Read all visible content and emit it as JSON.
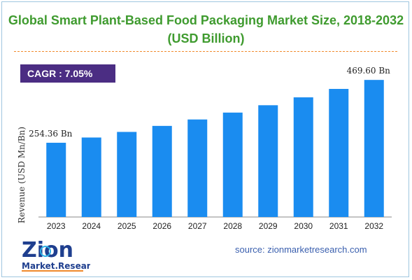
{
  "title": "Global Smart Plant-Based Food Packaging Market Size, 2018-2032 (USD Billion)",
  "cagr": {
    "label": "CAGR :",
    "value": "7.05%"
  },
  "source": "source: zionmarketresearch.com",
  "logo": {
    "line1": "Zion",
    "line2": "Market.Research"
  },
  "colors": {
    "bar": "#1a8cf0",
    "title": "#3f9b2f",
    "cagr_bg": "#4b2d83",
    "divider": "#f08a2c",
    "source": "#3a5fae"
  },
  "chart_data": {
    "type": "bar",
    "title": "Global Smart Plant-Based Food Packaging Market Size, 2018-2032 (USD Billion)",
    "xlabel": "",
    "ylabel": "Revenue (USD Mn/Bn)",
    "categories": [
      "2023",
      "2024",
      "2025",
      "2026",
      "2027",
      "2028",
      "2029",
      "2030",
      "2031",
      "2032"
    ],
    "values": [
      254.36,
      272.3,
      291.5,
      312.1,
      334.1,
      357.7,
      382.9,
      409.9,
      438.8,
      469.6
    ],
    "data_labels": [
      {
        "index": 0,
        "text": "254.36 Bn"
      },
      {
        "index": 9,
        "text": "469.60 Bn"
      }
    ],
    "ylim": [
      0,
      520
    ],
    "grid": false,
    "legend": "none"
  }
}
